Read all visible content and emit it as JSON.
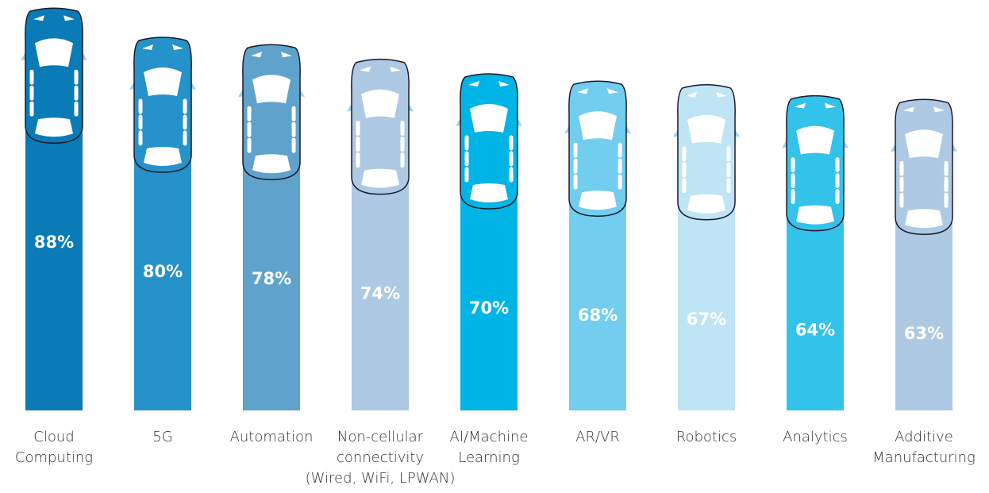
{
  "chart_data": {
    "type": "bar",
    "categories": [
      [
        "Cloud",
        "Computing"
      ],
      [
        "5G"
      ],
      [
        "Automation"
      ],
      [
        "Non-cellular",
        "connectivity",
        "(Wired, WiFi, LPWAN)"
      ],
      [
        "AI/Machine",
        "Learning"
      ],
      [
        "AR/VR"
      ],
      [
        "Robotics"
      ],
      [
        "Analytics"
      ],
      [
        "Additive",
        "Manufacturing"
      ]
    ],
    "values": [
      88,
      80,
      78,
      74,
      70,
      68,
      67,
      64,
      63
    ],
    "value_labels": [
      "88%",
      "80%",
      "78%",
      "74%",
      "70%",
      "68%",
      "67%",
      "64%",
      "63%"
    ],
    "colors": [
      "#0a7bb6",
      "#2592c9",
      "#5fa3cd",
      "#adc9e4",
      "#00b5e5",
      "#72cdef",
      "#bfe4f6",
      "#33c2ea",
      "#adc9e4"
    ]
  }
}
